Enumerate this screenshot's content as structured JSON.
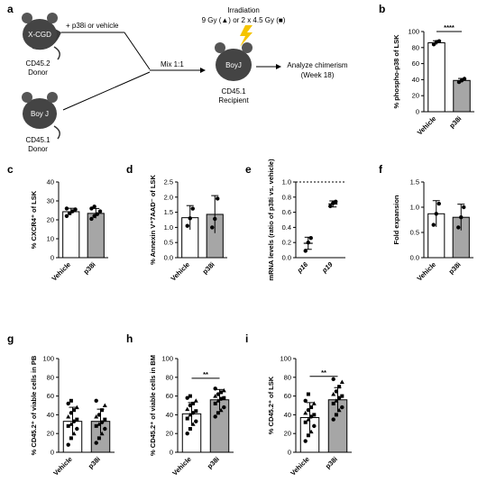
{
  "schematic": {
    "panel_label": "a",
    "mouse_xcgd": "X-CGD",
    "xcgd_line1": "CD45.2",
    "xcgd_line2": "Donor",
    "treatment": "+ p38i or vehicle",
    "mouse_boyj_donor": "Boy J",
    "boyj_line1": "CD45.1",
    "boyj_line2": "Donor",
    "mix": "Mix 1:1",
    "irradiation_title": "Irradiation",
    "irradiation_dose": "9 Gy (▲) or 2 x 4.5 Gy (■)",
    "mouse_recipient": "BoyJ",
    "recipient_line1": "CD45.1",
    "recipient_line2": "Recipient",
    "analyze_line1": "Analyze chimerism",
    "analyze_line2": "(Week 18)"
  },
  "chart_data": [
    {
      "panel": "b",
      "type": "bar",
      "ylabel": "% phospho-p38 of LSK",
      "ylim": [
        0,
        100
      ],
      "yticks": [
        0,
        20,
        40,
        60,
        80,
        100
      ],
      "categories": [
        "Vehicle",
        "p38i"
      ],
      "values": [
        86,
        39
      ],
      "errors": [
        2.5,
        2.5
      ],
      "points": [
        [
          84,
          87,
          88
        ],
        [
          37,
          39,
          41
        ]
      ],
      "significance": "****"
    },
    {
      "panel": "c",
      "type": "bar",
      "ylabel": "% CXCR4⁺ of LSK",
      "ylim": [
        0,
        40
      ],
      "yticks": [
        0,
        10,
        20,
        30,
        40
      ],
      "categories": [
        "Vehicle",
        "p38i"
      ],
      "values": [
        24.3,
        23.4
      ],
      "errors": [
        1.8,
        2.6
      ],
      "points": [
        [
          22,
          23.5,
          24.5,
          25.5,
          26
        ],
        [
          20.5,
          22,
          23,
          24.5,
          26,
          27
        ]
      ]
    },
    {
      "panel": "d",
      "type": "bar",
      "ylabel": "% Annexin V⁺7AAD⁻ of LSK",
      "ylim": [
        0,
        2.5
      ],
      "yticks": [
        0.0,
        0.5,
        1.0,
        1.5,
        2.0,
        2.5
      ],
      "categories": [
        "Vehicle",
        "p38i"
      ],
      "values": [
        1.32,
        1.43
      ],
      "errors": [
        0.4,
        0.62
      ],
      "points": [
        [
          1.05,
          1.3,
          1.62
        ],
        [
          1.0,
          1.28,
          1.95
        ]
      ]
    },
    {
      "panel": "e",
      "type": "scatter",
      "ylabel": "mRNA levels (ratio of p38i vs. vehicle)",
      "ylim": [
        0,
        1.0
      ],
      "yticks": [
        0.0,
        0.2,
        0.4,
        0.6,
        0.8,
        1.0
      ],
      "categories": [
        "p16",
        "p19"
      ],
      "values": [
        0.19,
        0.71
      ],
      "errors": [
        0.08,
        0.04
      ],
      "points": [
        [
          0.09,
          0.2,
          0.26
        ],
        [
          0.68,
          0.72,
          0.74
        ]
      ],
      "reference_line": 1.0
    },
    {
      "panel": "f",
      "type": "bar",
      "ylabel": "Fold expansion",
      "ylim": [
        0,
        1.5
      ],
      "yticks": [
        0.0,
        0.5,
        1.0,
        1.5
      ],
      "categories": [
        "Vehicle",
        "p38i"
      ],
      "values": [
        0.87,
        0.8
      ],
      "errors": [
        0.26,
        0.26
      ],
      "points": [
        [
          0.65,
          0.87,
          1.07
        ],
        [
          0.6,
          0.8,
          1.0
        ]
      ]
    },
    {
      "panel": "g",
      "type": "bar",
      "ylabel": "% CD45.2⁺ of viable cells in PB",
      "ylim": [
        0,
        100
      ],
      "yticks": [
        0,
        20,
        40,
        60,
        80,
        100
      ],
      "categories": [
        "Vehicle",
        "p38i"
      ],
      "values": [
        33,
        33
      ],
      "errors": [
        15,
        13
      ],
      "points": [
        [
          8,
          15,
          20,
          25,
          28,
          30,
          33,
          35,
          38,
          42,
          45,
          48,
          52,
          55
        ],
        [
          10,
          15,
          20,
          25,
          28,
          30,
          32,
          35,
          38,
          40,
          45,
          50,
          55
        ]
      ]
    },
    {
      "panel": "h",
      "type": "bar",
      "ylabel": "% CD45.2⁺ of viable cells in BM",
      "ylim": [
        0,
        100
      ],
      "yticks": [
        0,
        20,
        40,
        60,
        80,
        100
      ],
      "categories": [
        "Vehicle",
        "p38i"
      ],
      "values": [
        41,
        56
      ],
      "errors": [
        12,
        11
      ],
      "points": [
        [
          20,
          25,
          30,
          33,
          36,
          40,
          42,
          44,
          46,
          50,
          52,
          55,
          58,
          60
        ],
        [
          38,
          42,
          45,
          48,
          52,
          55,
          57,
          58,
          60,
          62,
          64,
          66,
          68
        ]
      ],
      "significance": "**"
    },
    {
      "panel": "i",
      "type": "bar",
      "ylabel": "% CD45.2⁺ of LSK",
      "ylim": [
        0,
        100
      ],
      "yticks": [
        0,
        20,
        40,
        60,
        80,
        100
      ],
      "categories": [
        "Vehicle",
        "p38i"
      ],
      "values": [
        37,
        56
      ],
      "errors": [
        16,
        13
      ],
      "points": [
        [
          12,
          18,
          22,
          28,
          32,
          35,
          38,
          40,
          42,
          45,
          48,
          52,
          55,
          62
        ],
        [
          35,
          40,
          45,
          48,
          52,
          55,
          58,
          60,
          62,
          65,
          70,
          75,
          78
        ]
      ],
      "significance": "**"
    }
  ]
}
